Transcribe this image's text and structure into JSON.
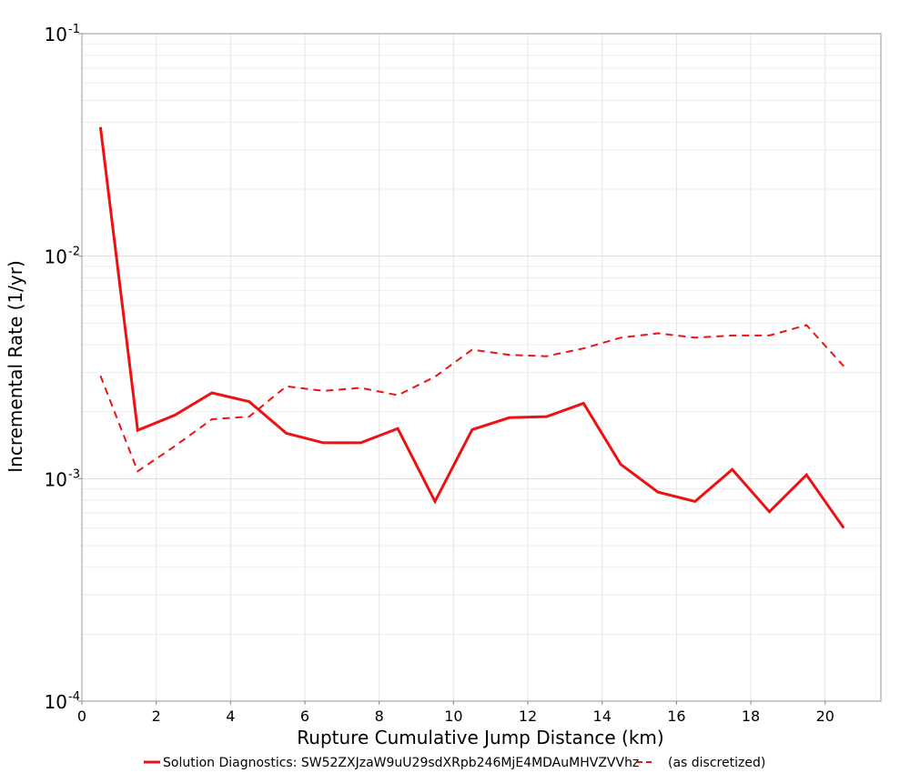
{
  "chart_data": {
    "type": "line",
    "xlabel": "Rupture Cumulative Jump Distance (km)",
    "ylabel": "Incremental Rate (1/yr)",
    "xlim": [
      0,
      21.5
    ],
    "ylim": [
      0.0001,
      0.1
    ],
    "yscale": "log",
    "grid": true,
    "legend_position": "bottom",
    "x_ticks": [
      0,
      2,
      4,
      6,
      8,
      10,
      12,
      14,
      16,
      18,
      20
    ],
    "x_tick_labels": [
      "0",
      "2",
      "4",
      "6",
      "8",
      "10",
      "12",
      "14",
      "16",
      "18",
      "20"
    ],
    "y_ticks": [
      {
        "value": 0.1,
        "base": "10",
        "exp": "-1"
      },
      {
        "value": 0.01,
        "base": "10",
        "exp": "-2"
      },
      {
        "value": 0.001,
        "base": "10",
        "exp": "-3"
      },
      {
        "value": 0.0001,
        "base": "10",
        "exp": "-4"
      }
    ],
    "series": [
      {
        "name": "Solution Diagnostics: SW52ZXJzaW9uU29sdXRpb246MjE4MDAuMHVZVVhz",
        "style": "solid",
        "color": "#ee1111",
        "x": [
          0.5,
          1.5,
          2.5,
          3.5,
          4.5,
          5.5,
          6.5,
          7.5,
          8.5,
          9.5,
          10.5,
          11.5,
          12.5,
          13.5,
          14.5,
          15.5,
          16.5,
          17.5,
          18.5,
          19.5,
          20.5
        ],
        "y": [
          0.038,
          0.00165,
          0.00193,
          0.00243,
          0.00222,
          0.0016,
          0.00145,
          0.00145,
          0.00168,
          0.00079,
          0.00166,
          0.00188,
          0.0019,
          0.00218,
          0.00116,
          0.00087,
          0.00079,
          0.0011,
          0.00071,
          0.00104,
          0.0006
        ]
      },
      {
        "name": "(as discretized)",
        "style": "dashed",
        "color": "#ee1111",
        "x": [
          0.5,
          1.5,
          2.5,
          3.5,
          4.5,
          5.5,
          6.5,
          7.5,
          8.5,
          9.5,
          10.5,
          11.5,
          12.5,
          13.5,
          14.5,
          15.5,
          16.5,
          17.5,
          18.5,
          19.5,
          20.5
        ],
        "y": [
          0.0029,
          0.00108,
          0.0014,
          0.00185,
          0.0019,
          0.0026,
          0.00248,
          0.00256,
          0.00237,
          0.00287,
          0.0038,
          0.0036,
          0.00355,
          0.00385,
          0.0043,
          0.0045,
          0.0043,
          0.0044,
          0.0044,
          0.0049,
          0.0032
        ]
      }
    ]
  }
}
